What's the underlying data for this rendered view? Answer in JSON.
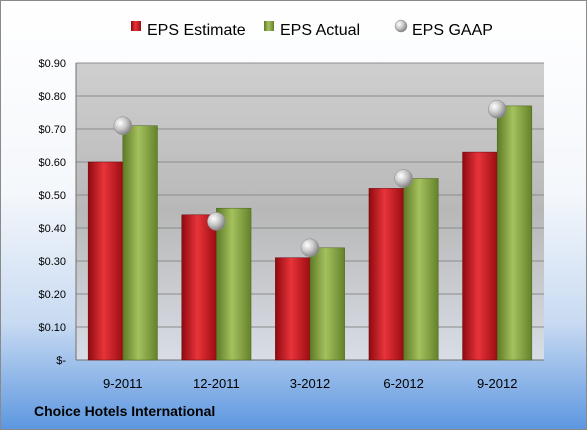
{
  "company": "Choice Hotels International",
  "chart_data": {
    "type": "bar",
    "categories": [
      "9-2011",
      "12-2011",
      "3-2012",
      "6-2012",
      "9-2012"
    ],
    "series": [
      {
        "name": "EPS Estimate",
        "kind": "bar",
        "color": "#c0141c",
        "values": [
          0.6,
          0.44,
          0.31,
          0.52,
          0.63
        ]
      },
      {
        "name": "EPS Actual",
        "kind": "bar",
        "color": "#7d9b3a",
        "values": [
          0.71,
          0.46,
          0.34,
          0.55,
          0.77
        ]
      },
      {
        "name": "EPS GAAP",
        "kind": "marker",
        "color": "#b4b4b4",
        "values": [
          0.71,
          0.42,
          0.34,
          0.55,
          0.76
        ]
      }
    ],
    "y_ticks": [
      "$-",
      "$0.10",
      "$0.20",
      "$0.30",
      "$0.40",
      "$0.50",
      "$0.60",
      "$0.70",
      "$0.80",
      "$0.90"
    ],
    "ylim": [
      0,
      0.9
    ],
    "grid": true,
    "legend": "top"
  }
}
